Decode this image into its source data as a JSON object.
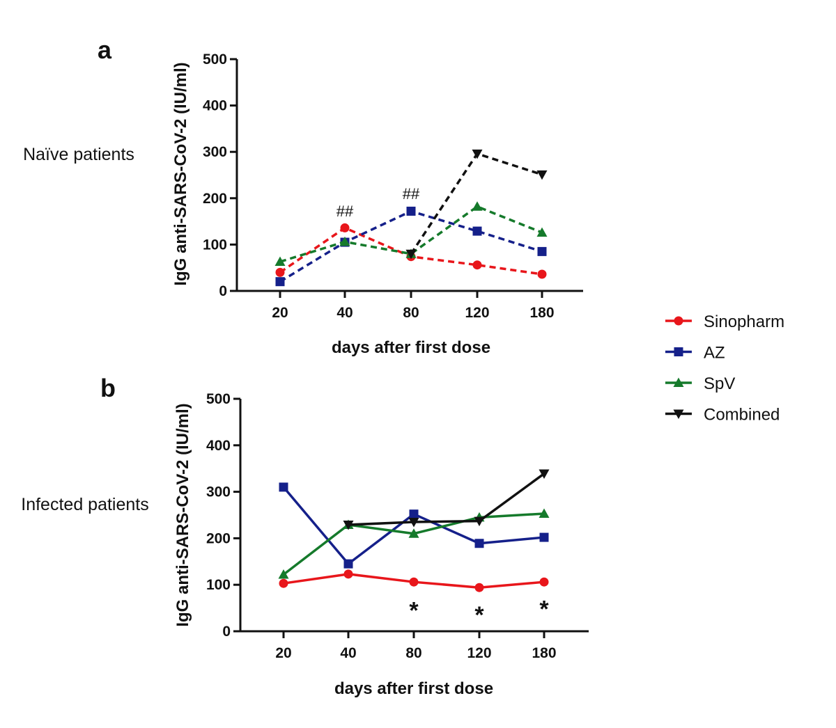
{
  "legend": {
    "items": [
      {
        "label": "Sinopharm",
        "color": "#e8161b",
        "marker": "circle"
      },
      {
        "label": "AZ",
        "color": "#15208a",
        "marker": "square"
      },
      {
        "label": "SpV",
        "color": "#157a2b",
        "marker": "triangle-up"
      },
      {
        "label": "Combined",
        "color": "#111111",
        "marker": "triangle-down"
      }
    ]
  },
  "chart_data": [
    {
      "type": "line",
      "panel": "a",
      "side_label": "Naïve patients",
      "line_style": "dashed",
      "xlabel": "days after first dose",
      "ylabel": "IgG anti-SARS-CoV-2 (IU/ml)",
      "categories": [
        "20",
        "40",
        "80",
        "120",
        "180"
      ],
      "ylim": [
        0,
        500
      ],
      "yticks": [
        "0",
        "100",
        "200",
        "300",
        "400",
        "500"
      ],
      "grid": false,
      "series": [
        {
          "name": "Sinopharm",
          "color": "#e8161b",
          "marker": "circle",
          "values": [
            40,
            136,
            74,
            56,
            36
          ]
        },
        {
          "name": "AZ",
          "color": "#15208a",
          "marker": "square",
          "values": [
            20,
            105,
            172,
            129,
            85
          ]
        },
        {
          "name": "SpV",
          "color": "#157a2b",
          "marker": "triangle-up",
          "values": [
            63,
            106,
            80,
            182,
            126
          ]
        },
        {
          "name": "Combined",
          "color": "#111111",
          "marker": "triangle-down",
          "values": [
            null,
            null,
            80,
            296,
            251
          ]
        }
      ],
      "annotations": [
        {
          "text": "##",
          "category": "40",
          "y": 173
        },
        {
          "text": "##",
          "category": "80",
          "y": 210
        }
      ]
    },
    {
      "type": "line",
      "panel": "b",
      "side_label": "Infected patients",
      "line_style": "solid",
      "xlabel": "days after first dose",
      "ylabel": "IgG anti-SARS-CoV-2 (IU/ml)",
      "categories": [
        "20",
        "40",
        "80",
        "120",
        "180"
      ],
      "ylim": [
        0,
        500
      ],
      "yticks": [
        "0",
        "100",
        "200",
        "300",
        "400",
        "500"
      ],
      "grid": false,
      "series": [
        {
          "name": "Sinopharm",
          "color": "#e8161b",
          "marker": "circle",
          "values": [
            103,
            123,
            106,
            94,
            106
          ]
        },
        {
          "name": "AZ",
          "color": "#15208a",
          "marker": "square",
          "values": [
            310,
            145,
            252,
            189,
            202
          ]
        },
        {
          "name": "SpV",
          "color": "#157a2b",
          "marker": "triangle-up",
          "values": [
            122,
            229,
            210,
            245,
            253
          ]
        },
        {
          "name": "Combined",
          "color": "#111111",
          "marker": "triangle-down",
          "values": [
            null,
            229,
            235,
            237,
            339
          ]
        }
      ],
      "annotations": [
        {
          "text": "*",
          "category": "80",
          "y": 55
        },
        {
          "text": "*",
          "category": "120",
          "y": 45
        },
        {
          "text": "*",
          "category": "180",
          "y": 58
        }
      ]
    }
  ]
}
